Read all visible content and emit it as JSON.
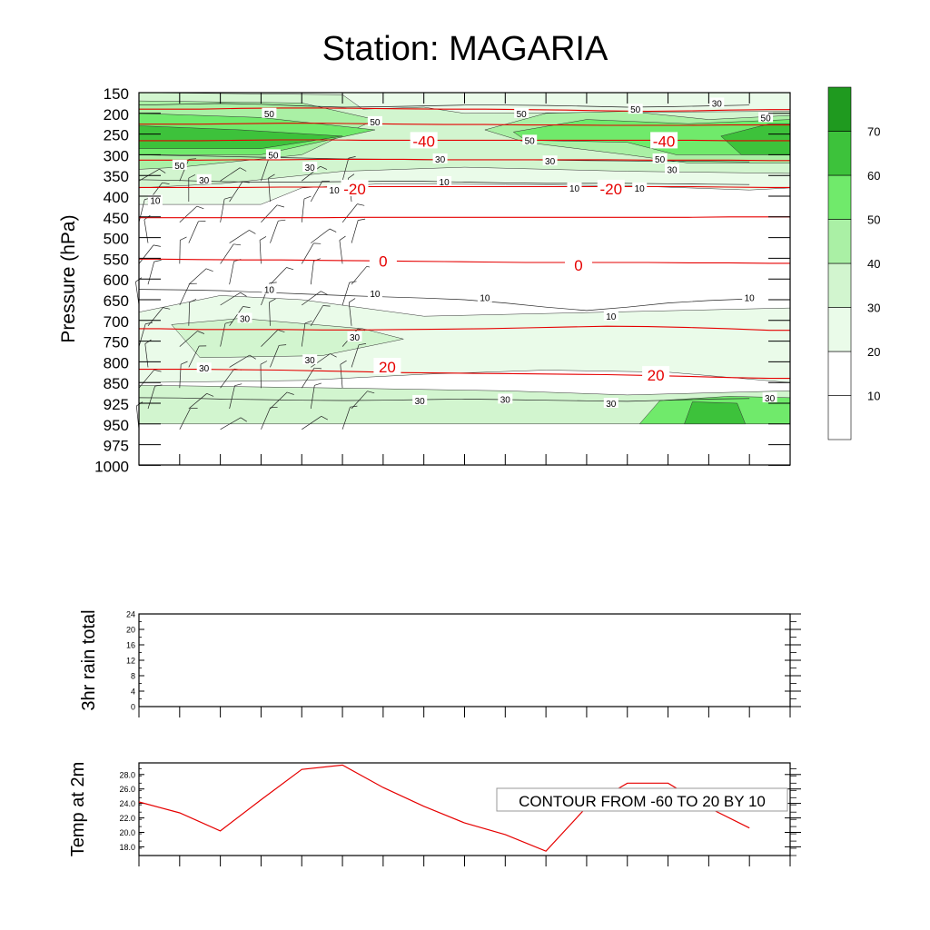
{
  "title": "Station: MAGARIA",
  "chart_data": [
    {
      "type": "contour",
      "name": "time-pressure cross section",
      "ylabel": "Pressure (hPa)",
      "pressure_levels": [
        "150",
        "200",
        "250",
        "300",
        "350",
        "400",
        "450",
        "500",
        "550",
        "600",
        "650",
        "700",
        "750",
        "800",
        "850",
        "925",
        "950",
        "975",
        "1000"
      ],
      "time_ticks": 16,
      "colorbar": {
        "labels": [
          "10",
          "20",
          "30",
          "40",
          "50",
          "60",
          "70"
        ],
        "colors": [
          "#ffffff",
          "#ffffff",
          "#eafbe9",
          "#d2f5cf",
          "#aaf0a5",
          "#70ea6b",
          "#3dc23b",
          "#1f9a1f"
        ]
      },
      "wind_speed_contour_labels": [
        {
          "text": "50",
          "t": 3.2,
          "p": "200"
        },
        {
          "text": "50",
          "t": 5.8,
          "p": "220"
        },
        {
          "text": "50",
          "t": 9.4,
          "p": "200"
        },
        {
          "text": "50",
          "t": 12.2,
          "p": "190"
        },
        {
          "text": "50",
          "t": 15.4,
          "p": "210"
        },
        {
          "text": "50",
          "t": 3.3,
          "p": "300"
        },
        {
          "text": "50",
          "t": 1.0,
          "p": "325"
        },
        {
          "text": "50",
          "t": 9.6,
          "p": "265"
        },
        {
          "text": "50",
          "t": 12.8,
          "p": "310"
        },
        {
          "text": "30",
          "t": 14.2,
          "p": "175"
        },
        {
          "text": "30",
          "t": 7.4,
          "p": "310"
        },
        {
          "text": "30",
          "t": 10.1,
          "p": "315"
        },
        {
          "text": "30",
          "t": 13.1,
          "p": "335"
        },
        {
          "text": "30",
          "t": 1.6,
          "p": "360"
        },
        {
          "text": "30",
          "t": 4.2,
          "p": "330"
        },
        {
          "text": "30",
          "t": 2.6,
          "p": "695"
        },
        {
          "text": "30",
          "t": 5.3,
          "p": "740"
        },
        {
          "text": "30",
          "t": 1.6,
          "p": "815"
        },
        {
          "text": "30",
          "t": 4.2,
          "p": "795"
        },
        {
          "text": "30",
          "t": 6.9,
          "p": "915"
        },
        {
          "text": "30",
          "t": 9.0,
          "p": "910"
        },
        {
          "text": "30",
          "t": 11.6,
          "p": "925"
        },
        {
          "text": "30",
          "t": 15.5,
          "p": "905"
        },
        {
          "text": "10",
          "t": 0.4,
          "p": "410"
        },
        {
          "text": "10",
          "t": 4.8,
          "p": "385"
        },
        {
          "text": "10",
          "t": 7.5,
          "p": "365"
        },
        {
          "text": "10",
          "t": 10.7,
          "p": "380"
        },
        {
          "text": "10",
          "t": 12.3,
          "p": "380"
        },
        {
          "text": "10",
          "t": 3.2,
          "p": "625"
        },
        {
          "text": "10",
          "t": 5.8,
          "p": "635"
        },
        {
          "text": "10",
          "t": 8.5,
          "p": "645"
        },
        {
          "text": "10",
          "t": 11.6,
          "p": "690"
        },
        {
          "text": "10",
          "t": 15.0,
          "p": "645"
        }
      ],
      "temperature_contour_labels": [
        {
          "text": "-40",
          "t": 7.0,
          "p": "265"
        },
        {
          "text": "-40",
          "t": 12.9,
          "p": "265"
        },
        {
          "text": "-20",
          "t": 5.3,
          "p": "380"
        },
        {
          "text": "-20",
          "t": 11.6,
          "p": "380"
        },
        {
          "text": "0",
          "t": 6.0,
          "p": "555"
        },
        {
          "text": "0",
          "t": 10.8,
          "p": "565"
        },
        {
          "text": "20",
          "t": 6.1,
          "p": "810"
        },
        {
          "text": "20",
          "t": 12.7,
          "p": "830"
        }
      ],
      "temperature_contours": [
        {
          "level": "-50",
          "p": [
            190,
            190,
            188,
            187,
            187,
            188,
            189,
            190,
            190,
            191,
            192,
            194,
            195,
            194,
            192,
            191
          ]
        },
        {
          "level": "-45",
          "p": [
            226,
            226,
            225,
            224,
            224,
            225,
            226,
            227,
            227,
            228,
            228,
            229,
            229,
            229,
            228,
            228
          ]
        },
        {
          "level": "-40",
          "p": [
            266,
            266,
            265,
            264,
            264,
            265,
            265,
            265,
            265,
            265,
            265,
            265,
            265,
            265,
            266,
            266
          ]
        },
        {
          "level": "-30",
          "p": [
            313,
            313,
            312,
            312,
            311,
            311,
            311,
            312,
            312,
            312,
            312,
            312,
            313,
            313,
            313,
            314
          ]
        },
        {
          "level": "-20",
          "p": [
            379,
            379,
            379,
            378,
            378,
            377,
            377,
            377,
            377,
            377,
            377,
            377,
            377,
            377,
            378,
            379
          ]
        },
        {
          "level": "-10",
          "p": [
            452,
            452,
            452,
            452,
            452,
            451,
            451,
            451,
            451,
            451,
            451,
            451,
            451,
            451,
            450,
            450
          ]
        },
        {
          "level": "0",
          "p": [
            552,
            553,
            554,
            554,
            555,
            556,
            557,
            558,
            559,
            560,
            560,
            560,
            560,
            561,
            561,
            562
          ]
        },
        {
          "level": "10",
          "p": [
            720,
            722,
            722,
            722,
            723,
            723,
            722,
            721,
            720,
            718,
            716,
            714,
            715,
            717,
            720,
            724
          ]
        },
        {
          "level": "20",
          "p": [
            818,
            818,
            819,
            820,
            822,
            824,
            826,
            827,
            828,
            829,
            830,
            831,
            833,
            835,
            838,
            840
          ]
        }
      ]
    },
    {
      "type": "line",
      "name": "rain",
      "ylabel": "3hr rain total",
      "ylim": [
        0,
        24
      ],
      "yticks": [
        "0",
        "4",
        "8",
        "12",
        "16",
        "20",
        "24"
      ],
      "values": []
    },
    {
      "type": "line",
      "name": "temperature",
      "ylabel": "Temp at 2m",
      "ylim": [
        16.8,
        29.6
      ],
      "yticks": [
        "18.0",
        "20.0",
        "22.0",
        "24.0",
        "26.0",
        "28.0"
      ],
      "x": [
        0,
        1,
        2,
        3,
        4,
        5,
        6,
        7,
        8,
        9,
        10,
        11,
        12,
        13,
        14,
        15
      ],
      "values": [
        24.2,
        22.7,
        20.2,
        24.5,
        28.7,
        29.3,
        26.2,
        23.6,
        21.3,
        19.7,
        17.4,
        23.5,
        26.8,
        26.8,
        23.4,
        20.6
      ],
      "color": "#e60000"
    }
  ],
  "note": "CONTOUR FROM -60 TO 20 BY 10"
}
